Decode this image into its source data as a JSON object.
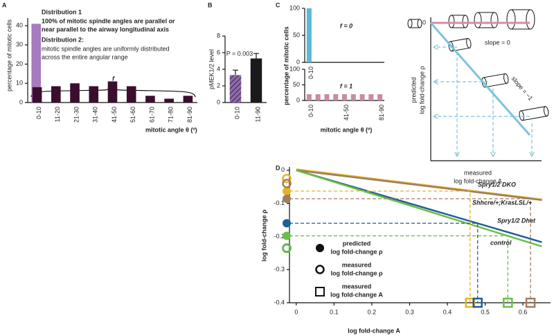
{
  "chart_data": [
    {
      "type": "bar",
      "panel": "A",
      "ylabel": "percentage of mitotic cells",
      "xlabel": "mitotic angle θ (º)",
      "categories": [
        "0-10",
        "11-20",
        "21-30",
        "31-40",
        "41-50",
        "51-60",
        "61-70",
        "71-80",
        "81-90"
      ],
      "series": [
        {
          "name": "Distribution 1",
          "color": "#a77bbf",
          "values": [
            41,
            null,
            null,
            null,
            null,
            null,
            null,
            null,
            null
          ]
        },
        {
          "name": "Distribution 2:",
          "color": "#3b0d2e",
          "values": [
            8,
            8.5,
            10,
            8.5,
            11,
            8.5,
            3.5,
            2,
            3.5
          ]
        }
      ],
      "annotations": [
        "100% of mitotic spindle angles are parallel or",
        "near parallel to the airway longitudinal axis",
        "mitotic spindle angles are uniformly distributed",
        "across the entire angular range",
        "f"
      ],
      "ylim": [
        0,
        44
      ],
      "yticks": [
        0,
        10,
        20,
        30,
        40
      ]
    },
    {
      "type": "bar",
      "panel": "B",
      "ylabel": "pMEK1/2 level",
      "categories": [
        "0-10",
        "11-90"
      ],
      "values": [
        3.3,
        5.3
      ],
      "errors": [
        0.6,
        0.6
      ],
      "colors": [
        "#8e6aa8",
        "#1a1a1a"
      ],
      "hatch": [
        true,
        false
      ],
      "annotation": "P = 0.003",
      "ylim": [
        0,
        8
      ],
      "yticks": [
        0,
        2,
        4,
        6,
        8
      ]
    },
    {
      "type": "bar",
      "panel": "C",
      "annotation": "f = 0",
      "color": "#5bb8d6",
      "categories": [
        "0-10",
        null,
        null,
        null,
        null,
        null,
        null,
        null,
        null
      ],
      "values": [
        100,
        0,
        0,
        0,
        0,
        0,
        0,
        0,
        0
      ],
      "ylim": [
        0,
        100
      ],
      "yticks": [
        0,
        50,
        100
      ]
    },
    {
      "type": "bar",
      "annotation": "f = 1",
      "color": "#c98ba5",
      "ylabel": "percentage of mitotic cells",
      "xlabel": "mitotic angle θ (º)",
      "categories": [
        "0-10",
        null,
        null,
        null,
        "41-50",
        null,
        null,
        null,
        "81-90"
      ],
      "values": [
        20,
        20,
        20,
        20,
        20,
        20,
        20,
        20,
        20
      ],
      "ylim": [
        0,
        100
      ],
      "yticks": [
        0,
        50,
        100
      ]
    },
    {
      "type": "line",
      "xlabel": [
        "measured",
        "log fold-change A"
      ],
      "ylabel": [
        "predicted",
        "log fold-change ρ"
      ],
      "x": [
        0,
        1
      ],
      "series": [
        {
          "name": "slope = 0",
          "color": "#d98aa8",
          "values": [
            0,
            0
          ]
        },
        {
          "name": "slope = −1",
          "color": "#7cc2dd",
          "values": [
            0,
            -1
          ]
        }
      ],
      "xlim": [
        0,
        1
      ],
      "ylim": [
        -1,
        0
      ],
      "yticks": [
        0
      ]
    },
    {
      "type": "line",
      "panel": "D",
      "xlabel": "log fold-change A",
      "ylabel": "log fold-change ρ",
      "series": [
        {
          "name": "Spry1/2 DKO",
          "color": "#e6b422",
          "x": [
            0,
            0.65
          ],
          "values": [
            0.003,
            -0.088
          ],
          "measured_A": 0.46,
          "predicted_rho": -0.063,
          "measured_rho": -0.025
        },
        {
          "name": "Shhcre/+;KrasLSL/+",
          "color": "#a07d5e",
          "x": [
            0,
            0.65
          ],
          "values": [
            0,
            -0.09
          ],
          "measured_A": 0.62,
          "predicted_rho": -0.086,
          "measured_rho": -0.04
        },
        {
          "name": "Spry1/2 Dhet",
          "color": "#1f5f96",
          "x": [
            0,
            0.65
          ],
          "values": [
            0,
            -0.217
          ],
          "measured_A": 0.48,
          "predicted_rho": -0.16,
          "measured_rho": -0.235
        },
        {
          "name": "control",
          "color": "#6abf45",
          "x": [
            0,
            0.65
          ],
          "values": [
            0,
            -0.23
          ],
          "measured_A": 0.56,
          "predicted_rho": -0.198,
          "measured_rho": -0.236
        }
      ],
      "marker_legend": [
        [
          "predicted",
          "log fold-change ρ"
        ],
        [
          "measured",
          "log fold-change ρ"
        ],
        [
          "measured",
          "log fold-change A"
        ]
      ],
      "xlim": [
        -0.018,
        0.673
      ],
      "ylim": [
        -0.4,
        0.01
      ],
      "xticks": [
        0,
        0.1,
        0.2,
        0.3,
        0.4,
        0.5,
        0.6
      ],
      "yticks": [
        -0.4,
        -0.3,
        -0.2,
        -0.1,
        0
      ]
    }
  ]
}
